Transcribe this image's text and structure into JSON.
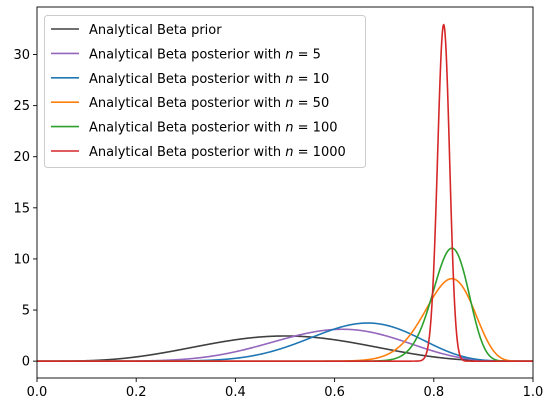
{
  "chart_data": {
    "type": "line",
    "title": "",
    "xlabel": "",
    "ylabel": "",
    "xlim": [
      0,
      1
    ],
    "ylim": [
      -1.65,
      34.65
    ],
    "x_ticks": [
      0.0,
      0.2,
      0.4,
      0.6,
      0.8,
      1.0
    ],
    "x_tick_labels": [
      "0.0",
      "0.2",
      "0.4",
      "0.6",
      "0.8",
      "1.0"
    ],
    "y_ticks": [
      0,
      5,
      10,
      15,
      20,
      25,
      30
    ],
    "y_tick_labels": [
      "0",
      "5",
      "10",
      "15",
      "20",
      "25",
      "30"
    ],
    "grid": false,
    "legend_position": "upper-left",
    "series": [
      {
        "name_prefix": "Analytical Beta prior",
        "name_n": "",
        "color": "#404040",
        "alpha": 5,
        "beta": 5
      },
      {
        "name_prefix": "Analytical Beta posterior with ",
        "name_n": "5",
        "color": "#9467bd",
        "alpha": 9,
        "beta": 6
      },
      {
        "name_prefix": "Analytical Beta posterior with ",
        "name_n": "10",
        "color": "#1f77b4",
        "alpha": 13,
        "beta": 7
      },
      {
        "name_prefix": "Analytical Beta posterior with ",
        "name_n": "50",
        "color": "#ff7f0e",
        "alpha": 47,
        "beta": 10
      },
      {
        "name_prefix": "Analytical Beta posterior with ",
        "name_n": "100",
        "color": "#2ca02c",
        "alpha": 88,
        "beta": 18
      },
      {
        "name_prefix": "Analytical Beta posterior with ",
        "name_n": "1000",
        "color": "#d62728",
        "alpha": 825,
        "beta": 182
      }
    ]
  }
}
